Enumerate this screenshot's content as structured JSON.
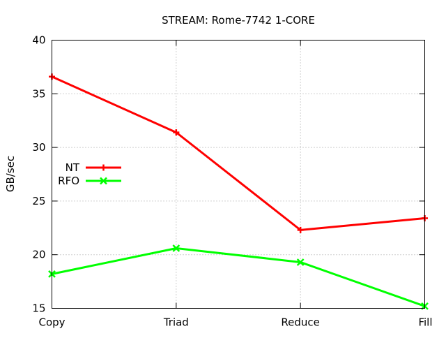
{
  "chart_data": {
    "type": "line",
    "title": "STREAM: Rome-7742 1-CORE",
    "xlabel": "",
    "ylabel": "GB/sec",
    "categories": [
      "Copy",
      "Triad",
      "Reduce",
      "Fill"
    ],
    "ylim": [
      15,
      40
    ],
    "yticks": [
      15,
      20,
      25,
      30,
      35,
      40
    ],
    "grid": true,
    "legend_position": "left-middle",
    "series": [
      {
        "name": "NT",
        "color": "#ff0000",
        "marker": "plus",
        "values": [
          36.6,
          31.4,
          22.3,
          23.4
        ]
      },
      {
        "name": "RFO",
        "color": "#00ff00",
        "marker": "cross",
        "values": [
          18.2,
          20.6,
          19.3,
          15.2
        ]
      }
    ]
  }
}
